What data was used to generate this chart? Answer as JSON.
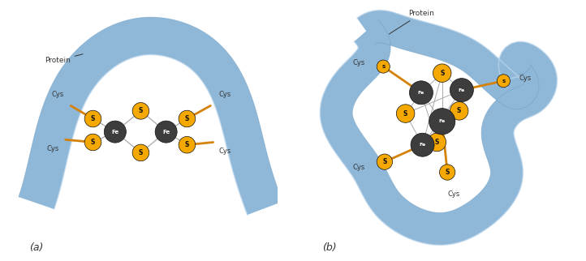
{
  "bg_color": "#ffffff",
  "panel_a_label": "(a)",
  "panel_b_label": "(b)",
  "protein_label": "Protein",
  "fe_label": "Fe",
  "s_label": "S",
  "s_small_label": "s",
  "cys_label": "Cys",
  "fe_color": "#3d3d3d",
  "s_color": "#F5A800",
  "line_color": "#aaaaaa",
  "cys_line_color": "#D4820A",
  "text_color": "#333333",
  "protein_color_main": "#8fb8d8",
  "protein_color_light": "#c0d8ee",
  "protein_color_shadow": "#6090b8",
  "protein_alpha": 1.0
}
